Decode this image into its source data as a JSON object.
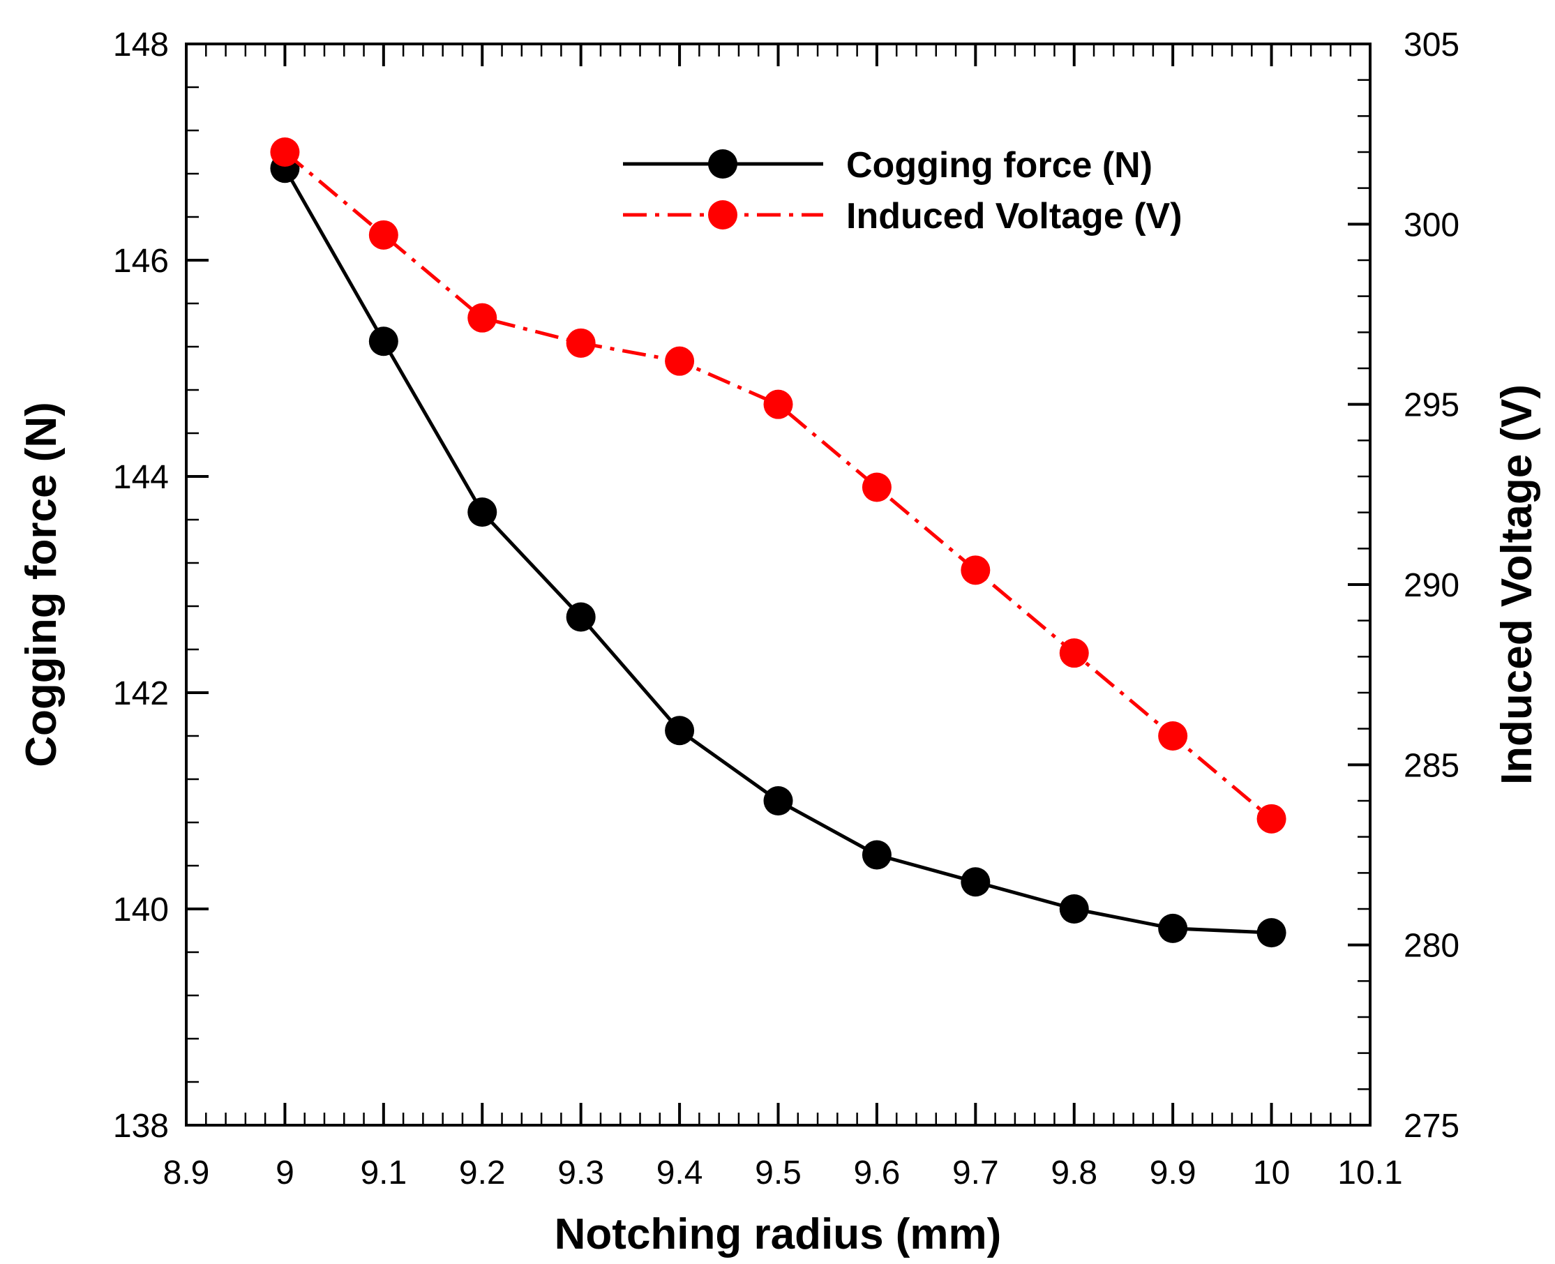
{
  "chart_data": {
    "type": "line",
    "title": "",
    "xlabel": "Notching radius (mm)",
    "ylabel_left": "Cogging force (N)",
    "ylabel_right": "Induced Voltage (V)",
    "xlim": [
      8.9,
      10.1
    ],
    "ylim_left": [
      138,
      148
    ],
    "ylim_right": [
      275,
      305
    ],
    "x_ticks": [
      "8.9",
      "9",
      "9.1",
      "9.2",
      "9.3",
      "9.4",
      "9.5",
      "9.6",
      "9.7",
      "9.8",
      "9.9",
      "10",
      "10.1"
    ],
    "y_left_ticks": [
      "138",
      "140",
      "142",
      "144",
      "146",
      "148"
    ],
    "y_right_ticks": [
      "275",
      "280",
      "285",
      "290",
      "295",
      "300",
      "305"
    ],
    "grid": false,
    "legend_position": "top-right",
    "x": [
      9.0,
      9.1,
      9.2,
      9.3,
      9.4,
      9.5,
      9.6,
      9.7,
      9.8,
      9.9,
      10.0
    ],
    "series": [
      {
        "name": "Cogging force (N)",
        "axis": "left",
        "color": "#000000",
        "line_style": "solid",
        "marker": "circle",
        "values": [
          146.85,
          145.25,
          143.67,
          142.7,
          141.65,
          141.0,
          140.5,
          140.25,
          140.0,
          139.82,
          139.78
        ]
      },
      {
        "name": "Induced Voltage (V)",
        "axis": "right",
        "color": "#ff0000",
        "line_style": "dash-dot",
        "marker": "circle",
        "values": [
          302.0,
          299.7,
          297.4,
          296.7,
          296.2,
          295.0,
          292.7,
          290.4,
          288.1,
          285.8,
          283.5
        ]
      }
    ]
  }
}
